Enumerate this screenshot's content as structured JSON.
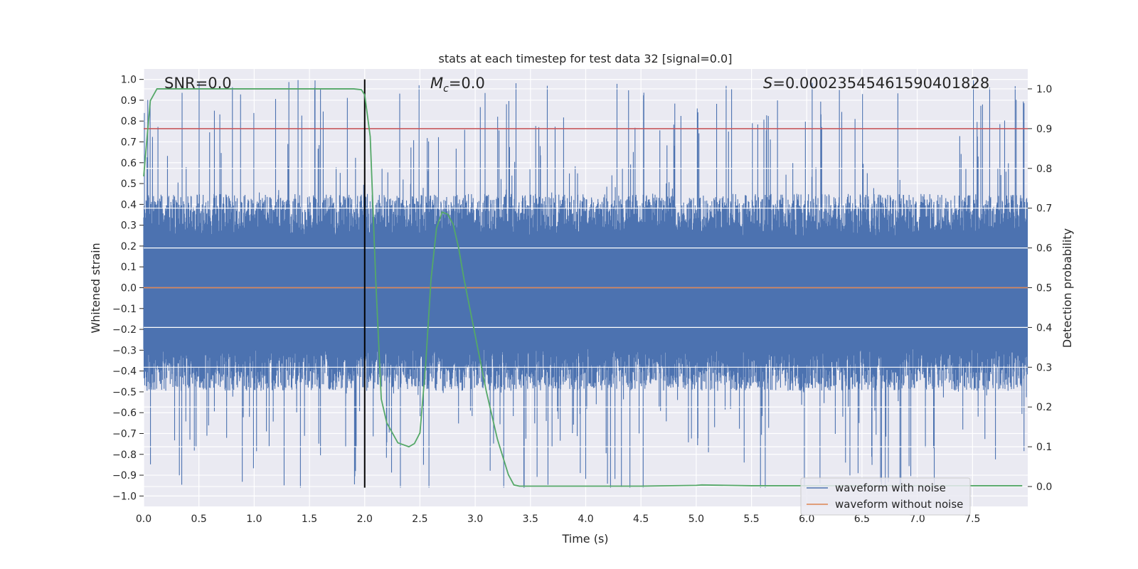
{
  "chart_data": {
    "type": "line",
    "title": "stats at each timestep for test data 32 [signal=0.0]",
    "xlabel": "Time (s)",
    "ylabel_left": "Whitened strain",
    "ylabel_right": "Detection probability",
    "xlim": [
      0.0,
      8.0
    ],
    "ylim_left": [
      -1.05,
      1.05
    ],
    "ylim_right": [
      -0.05,
      1.05
    ],
    "x_ticks": [
      "0.0",
      "0.5",
      "1.0",
      "1.5",
      "2.0",
      "2.5",
      "3.0",
      "3.5",
      "4.0",
      "4.5",
      "5.0",
      "5.5",
      "6.0",
      "6.5",
      "7.0",
      "7.5"
    ],
    "x_tick_values": [
      0.0,
      0.5,
      1.0,
      1.5,
      2.0,
      2.5,
      3.0,
      3.5,
      4.0,
      4.5,
      5.0,
      5.5,
      6.0,
      6.5,
      7.0,
      7.5
    ],
    "left_ticks": [
      "1.0",
      "0.9",
      "0.8",
      "0.7",
      "0.6",
      "0.5",
      "0.4",
      "0.3",
      "0.2",
      "0.1",
      "0.0",
      "−0.1",
      "−0.2",
      "−0.3",
      "−0.4",
      "−0.5",
      "−0.6",
      "−0.7",
      "−0.8",
      "−0.9",
      "−1.0"
    ],
    "left_tick_values": [
      1.0,
      0.9,
      0.8,
      0.7,
      0.6,
      0.5,
      0.4,
      0.3,
      0.2,
      0.1,
      0.0,
      -0.1,
      -0.2,
      -0.3,
      -0.4,
      -0.5,
      -0.6,
      -0.7,
      -0.8,
      -0.9,
      -1.0
    ],
    "right_ticks": [
      "1.0",
      "0.9",
      "0.8",
      "0.7",
      "0.6",
      "0.5",
      "0.4",
      "0.3",
      "0.2",
      "0.1",
      "0.0"
    ],
    "right_tick_values": [
      1.0,
      0.9,
      0.8,
      0.7,
      0.6,
      0.5,
      0.4,
      0.3,
      0.2,
      0.1,
      0.0
    ],
    "annotations": {
      "snr": "SNR=0.0",
      "mc_symbol": "M",
      "mc_sub": "c",
      "mc_value": "=0.0",
      "s_symbol": "S",
      "s_value": "=0.00023545461590401828"
    },
    "series": [
      {
        "name": "waveform with noise",
        "color": "#4c72b0",
        "kind": "noise",
        "typical_amplitude": 0.45,
        "peak_amplitude": 1.0
      },
      {
        "name": "waveform without noise",
        "color": "#dd8452",
        "kind": "flat",
        "value": 0.0
      },
      {
        "name": "detection probability",
        "color": "#55a868",
        "axis": "right",
        "x": [
          0.0,
          0.06,
          0.12,
          0.2,
          0.5,
          1.0,
          1.5,
          1.9,
          1.97,
          2.0,
          2.05,
          2.1,
          2.15,
          2.2,
          2.3,
          2.4,
          2.45,
          2.5,
          2.55,
          2.6,
          2.65,
          2.7,
          2.75,
          2.8,
          2.85,
          2.9,
          3.0,
          3.1,
          3.2,
          3.3,
          3.35,
          3.4,
          3.5,
          4.0,
          4.5,
          5.0,
          5.05,
          5.5,
          6.0,
          6.5,
          7.0,
          7.5,
          7.95
        ],
        "y": [
          0.78,
          0.97,
          1.0,
          1.0,
          1.0,
          1.0,
          1.0,
          1.0,
          0.998,
          0.985,
          0.88,
          0.52,
          0.22,
          0.16,
          0.11,
          0.1,
          0.108,
          0.135,
          0.3,
          0.52,
          0.65,
          0.69,
          0.685,
          0.66,
          0.6,
          0.52,
          0.38,
          0.24,
          0.12,
          0.03,
          0.004,
          0.001,
          0.001,
          0.001,
          0.001,
          0.003,
          0.004,
          0.002,
          0.002,
          0.002,
          0.002,
          0.002,
          0.002
        ]
      }
    ],
    "threshold_line": {
      "value": 0.9,
      "axis": "right",
      "color": "#c44e52"
    },
    "vertical_marker": {
      "x": 2.0,
      "color": "#000000",
      "y_range": [
        -0.96,
        1.0
      ]
    },
    "legend": {
      "position": "lower-right",
      "entries": [
        "waveform with noise",
        "waveform without noise"
      ]
    },
    "grid": true
  }
}
